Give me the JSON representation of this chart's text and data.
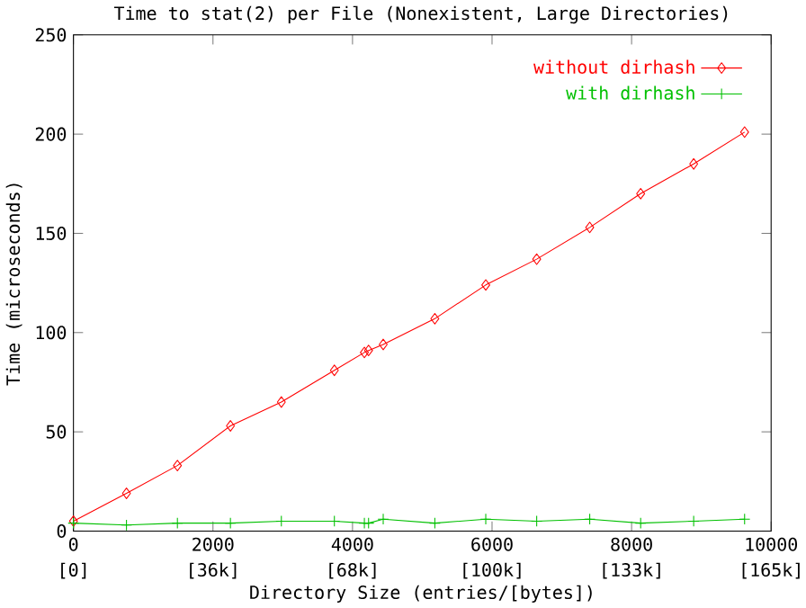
{
  "chart_data": {
    "type": "line",
    "title": "Time to stat(2) per File (Nonexistent, Large Directories)",
    "xlabel": "Directory Size (entries/[bytes])",
    "ylabel": "Time (microseconds)",
    "x": [
      0,
      760,
      1490,
      2250,
      2980,
      3740,
      4170,
      4230,
      4440,
      5180,
      5910,
      6640,
      7400,
      8130,
      8890,
      9620
    ],
    "series": [
      {
        "name": "without dirhash",
        "color": "#ff0000",
        "marker": "diamond",
        "values": [
          5,
          19,
          33,
          53,
          65,
          81,
          90,
          91,
          94,
          107,
          124,
          137,
          153,
          170,
          185,
          201
        ]
      },
      {
        "name": "with dirhash",
        "color": "#00c000",
        "marker": "cross",
        "values": [
          4,
          3,
          4,
          4,
          5,
          5,
          4,
          4,
          6,
          4,
          6,
          5,
          6,
          4,
          5,
          6
        ]
      }
    ],
    "xlim": [
      0,
      10000
    ],
    "ylim": [
      0,
      250
    ],
    "xticks": [
      0,
      2000,
      4000,
      6000,
      8000,
      10000
    ],
    "annotations": [
      "[0]",
      "[36k]",
      "[68k]",
      "[100k]",
      "[133k]",
      "[165k]"
    ],
    "yticks": [
      0,
      50,
      100,
      150,
      200,
      250
    ],
    "legend": "top right",
    "grid": false,
    "line_style": "solid"
  }
}
